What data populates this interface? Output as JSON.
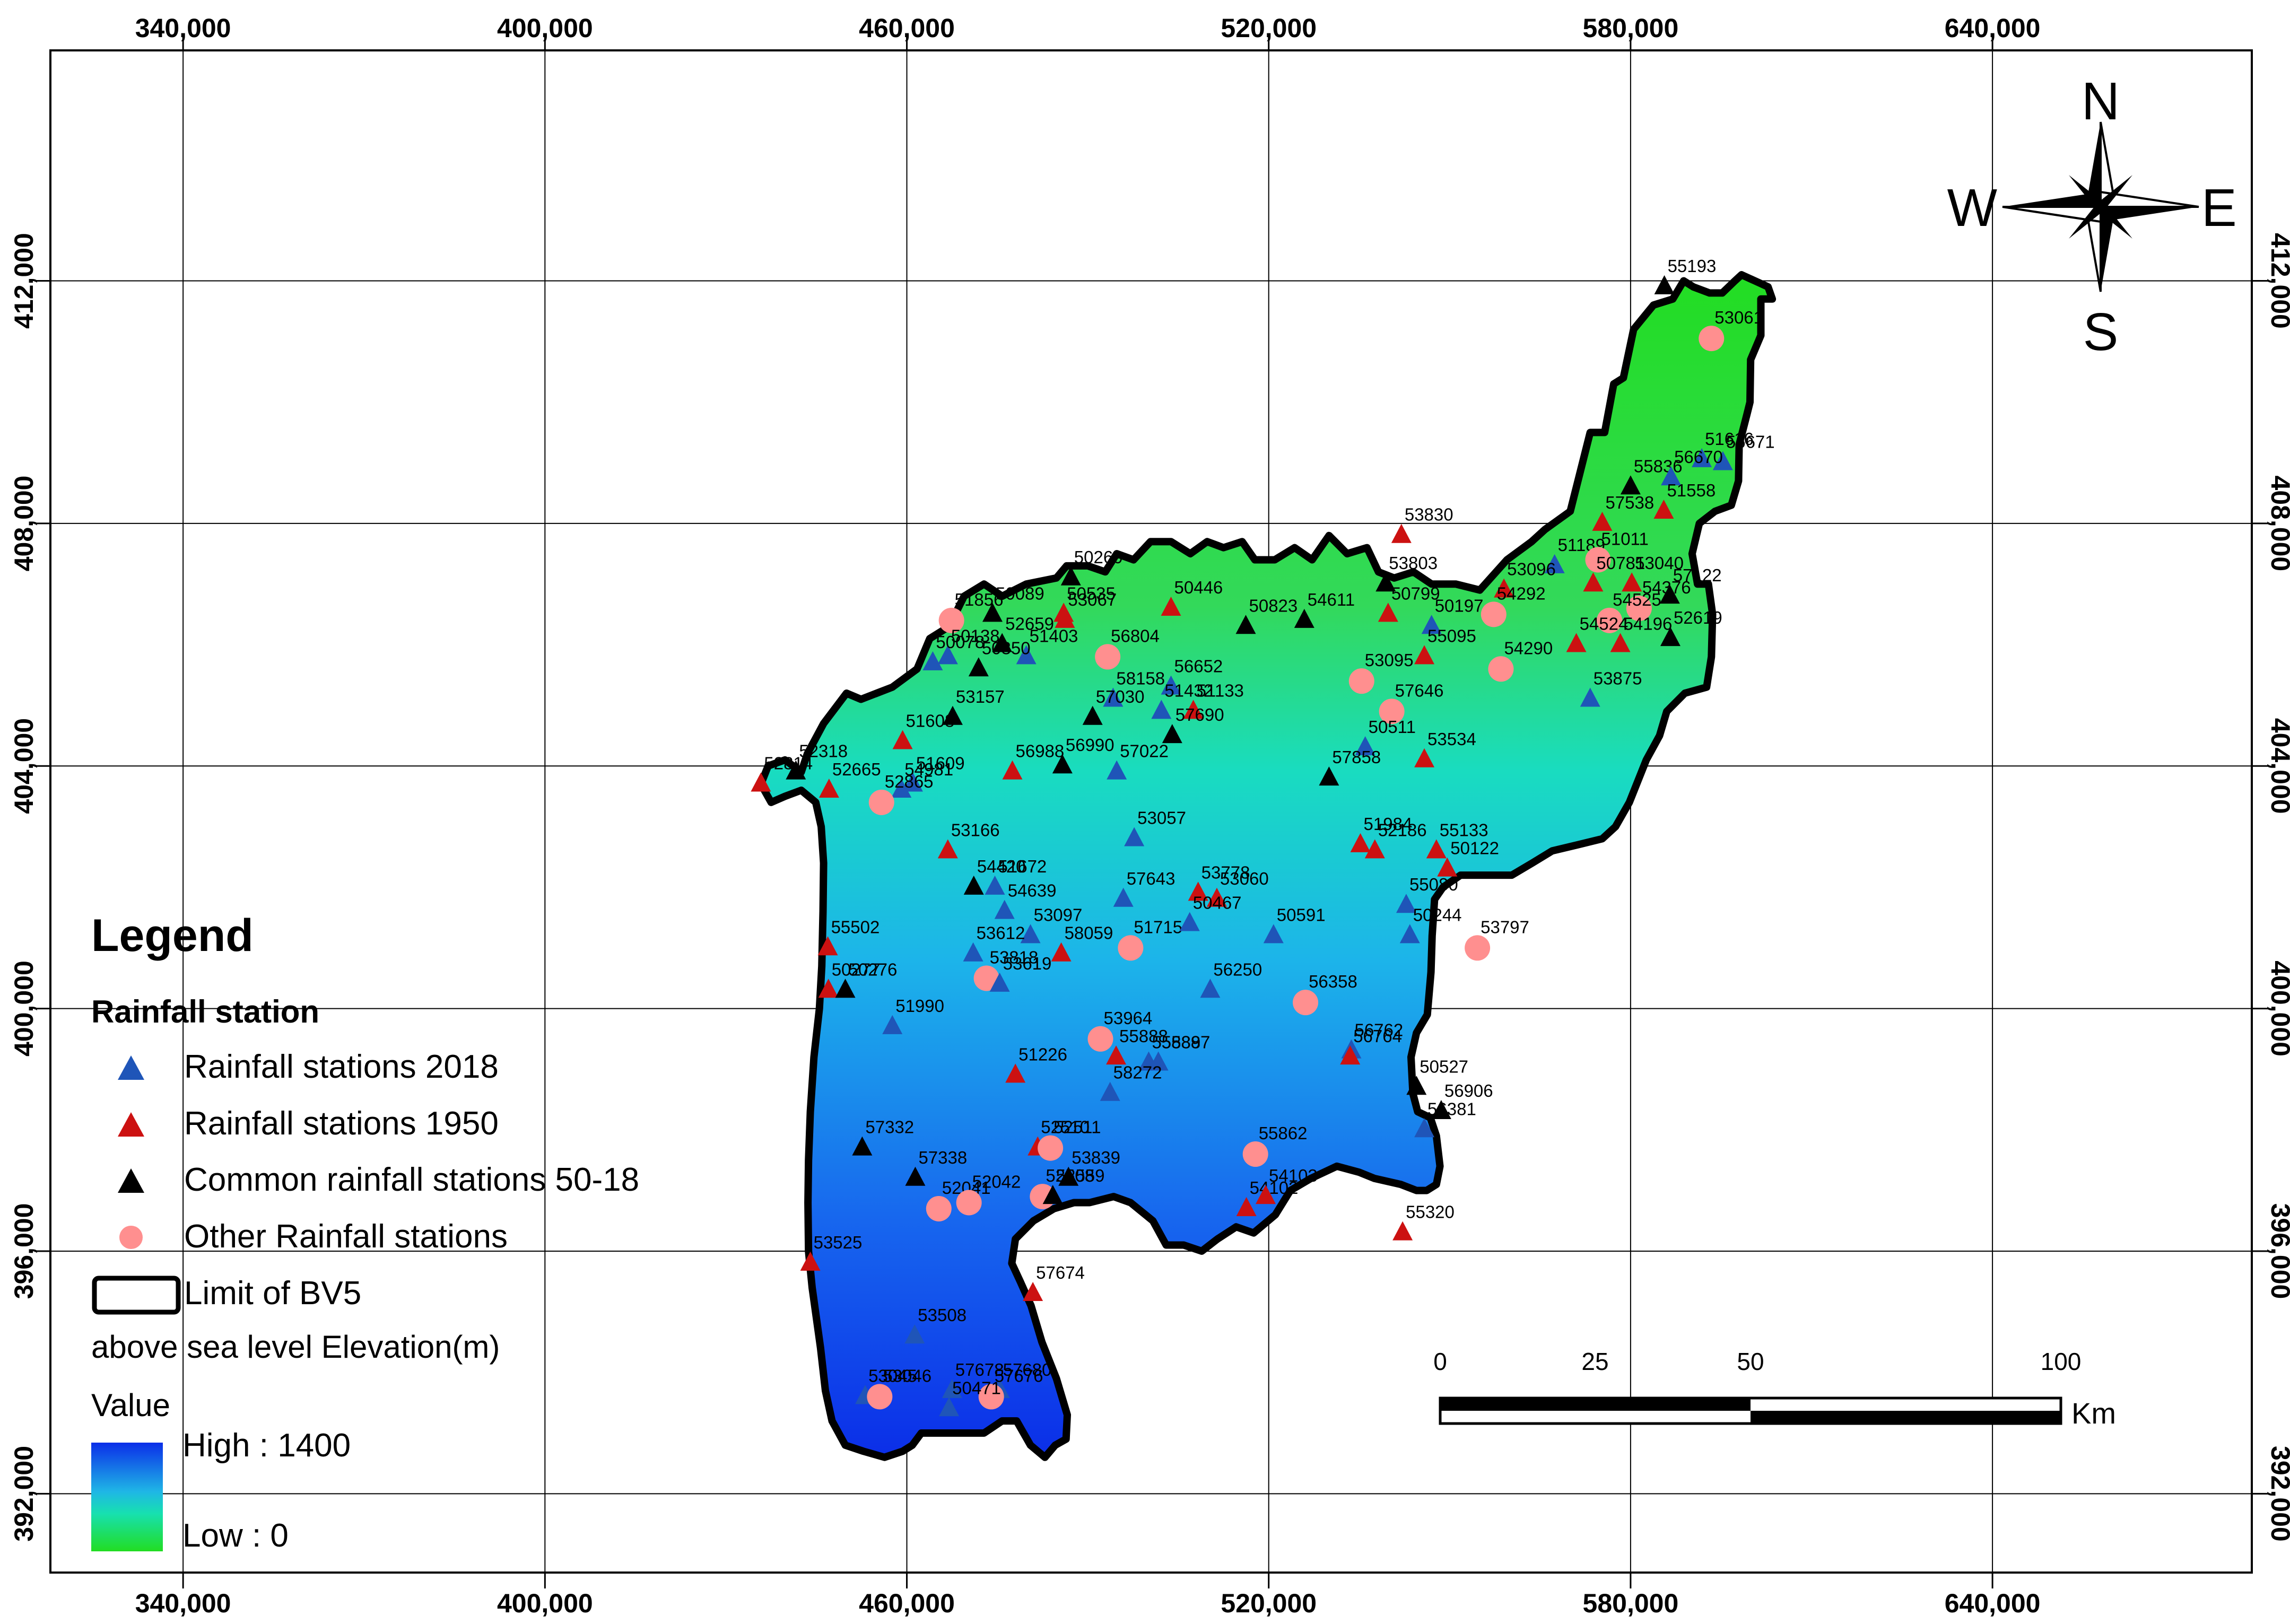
{
  "map": {
    "x_axis_ticks": [
      "340,000",
      "400,000",
      "460,000",
      "520,000",
      "580,000",
      "640,000"
    ],
    "y_axis_ticks": [
      "412,000",
      "408,000",
      "404,000",
      "400,000",
      "396,000",
      "392,000"
    ],
    "x_range": [
      318000,
      683000
    ],
    "y_range": [
      390700,
      415800
    ],
    "compass": {
      "n": "N",
      "s": "S",
      "e": "E",
      "w": "W"
    },
    "colors": {
      "rain_2018": "#1f55b8",
      "rain_1950": "#cc1111",
      "common": "#000000",
      "other": "#ff8f8f",
      "elev_high": "#0b2ee8",
      "elev_low": "#22dd22"
    },
    "stations": [
      {
        "id": "55193",
        "x": 585600,
        "y": 411900,
        "t": "common"
      },
      {
        "id": "53061",
        "x": 593400,
        "y": 411050,
        "t": "other"
      },
      {
        "id": "51616",
        "x": 591800,
        "y": 409050,
        "t": "rain_2018"
      },
      {
        "id": "56671",
        "x": 595300,
        "y": 409000,
        "t": "rain_2018"
      },
      {
        "id": "55836",
        "x": 580000,
        "y": 408600,
        "t": "common"
      },
      {
        "id": "56670",
        "x": 586700,
        "y": 408750,
        "t": "rain_2018"
      },
      {
        "id": "51558",
        "x": 585500,
        "y": 408200,
        "t": "rain_1950"
      },
      {
        "id": "57538",
        "x": 575300,
        "y": 408000,
        "t": "rain_1950"
      },
      {
        "id": "53830",
        "x": 542000,
        "y": 407800,
        "t": "rain_1950"
      },
      {
        "id": "51189",
        "x": 567400,
        "y": 407300,
        "t": "rain_2018"
      },
      {
        "id": "51011",
        "x": 574600,
        "y": 407400,
        "t": "other"
      },
      {
        "id": "53803",
        "x": 539400,
        "y": 407000,
        "t": "common"
      },
      {
        "id": "50781",
        "x": 573800,
        "y": 407000,
        "t": "rain_1950"
      },
      {
        "id": "53040",
        "x": 580200,
        "y": 407000,
        "t": "rain_1950"
      },
      {
        "id": "57122",
        "x": 586500,
        "y": 406800,
        "t": "common"
      },
      {
        "id": "53096",
        "x": 559000,
        "y": 406900,
        "t": "rain_1950"
      },
      {
        "id": "50799",
        "x": 539800,
        "y": 406500,
        "t": "rain_1950"
      },
      {
        "id": "54376",
        "x": 581400,
        "y": 406600,
        "t": "other"
      },
      {
        "id": "54525",
        "x": 576500,
        "y": 406400,
        "t": "other"
      },
      {
        "id": "50197",
        "x": 547000,
        "y": 406300,
        "t": "rain_2018"
      },
      {
        "id": "54292",
        "x": 557300,
        "y": 406500,
        "t": "other"
      },
      {
        "id": "54524",
        "x": 571000,
        "y": 406000,
        "t": "rain_1950"
      },
      {
        "id": "54196",
        "x": 578300,
        "y": 406000,
        "t": "rain_1950"
      },
      {
        "id": "52619",
        "x": 586600,
        "y": 406100,
        "t": "common"
      },
      {
        "id": "55095",
        "x": 545800,
        "y": 405800,
        "t": "rain_1950"
      },
      {
        "id": "54290",
        "x": 558500,
        "y": 405600,
        "t": "other"
      },
      {
        "id": "53875",
        "x": 573300,
        "y": 405100,
        "t": "rain_2018"
      },
      {
        "id": "56652",
        "x": 503800,
        "y": 405300,
        "t": "rain_2018"
      },
      {
        "id": "53095",
        "x": 535400,
        "y": 405400,
        "t": "other"
      },
      {
        "id": "50260",
        "x": 487200,
        "y": 407100,
        "t": "common"
      },
      {
        "id": "50446",
        "x": 503800,
        "y": 406600,
        "t": "rain_1950"
      },
      {
        "id": "50823",
        "x": 516200,
        "y": 406300,
        "t": "common"
      },
      {
        "id": "54611",
        "x": 525900,
        "y": 406400,
        "t": "common"
      },
      {
        "id": "50535",
        "x": 486000,
        "y": 406500,
        "t": "rain_1950"
      },
      {
        "id": "50089",
        "x": 474200,
        "y": 406500,
        "t": "common"
      },
      {
        "id": "51856",
        "x": 467400,
        "y": 406400,
        "t": "other"
      },
      {
        "id": "53067",
        "x": 486200,
        "y": 406400,
        "t": "rain_1950"
      },
      {
        "id": "56804",
        "x": 493300,
        "y": 405800,
        "t": "other"
      },
      {
        "id": "52659",
        "x": 475800,
        "y": 406000,
        "t": "common"
      },
      {
        "id": "50138",
        "x": 466800,
        "y": 405800,
        "t": "rain_2018"
      },
      {
        "id": "51403",
        "x": 479800,
        "y": 405800,
        "t": "rain_2018"
      },
      {
        "id": "50078",
        "x": 464300,
        "y": 405700,
        "t": "rain_2018"
      },
      {
        "id": "50350",
        "x": 471900,
        "y": 405600,
        "t": "common"
      },
      {
        "id": "58158",
        "x": 494200,
        "y": 405100,
        "t": "rain_2018"
      },
      {
        "id": "51432",
        "x": 502200,
        "y": 404900,
        "t": "rain_2018"
      },
      {
        "id": "51133",
        "x": 507500,
        "y": 404900,
        "t": "rain_1950"
      },
      {
        "id": "53157",
        "x": 467600,
        "y": 404800,
        "t": "common"
      },
      {
        "id": "57690",
        "x": 504000,
        "y": 404500,
        "t": "common"
      },
      {
        "id": "57646",
        "x": 540400,
        "y": 404900,
        "t": "other"
      },
      {
        "id": "50511",
        "x": 536000,
        "y": 404300,
        "t": "rain_2018"
      },
      {
        "id": "53534",
        "x": 545800,
        "y": 404100,
        "t": "rain_1950"
      },
      {
        "id": "57030",
        "x": 490800,
        "y": 404800,
        "t": "common"
      },
      {
        "id": "51608",
        "x": 459300,
        "y": 404400,
        "t": "rain_1950"
      },
      {
        "id": "51609",
        "x": 461000,
        "y": 403700,
        "t": "rain_2018"
      },
      {
        "id": "56988",
        "x": 477500,
        "y": 403900,
        "t": "rain_1950"
      },
      {
        "id": "56990",
        "x": 485800,
        "y": 404000,
        "t": "common"
      },
      {
        "id": "57022",
        "x": 494800,
        "y": 403900,
        "t": "rain_2018"
      },
      {
        "id": "57858",
        "x": 530000,
        "y": 403800,
        "t": "common"
      },
      {
        "id": "52318",
        "x": 441600,
        "y": 403900,
        "t": "common"
      },
      {
        "id": "52665",
        "x": 447100,
        "y": 403600,
        "t": "rain_1950"
      },
      {
        "id": "54981",
        "x": 459100,
        "y": 403600,
        "t": "rain_2018"
      },
      {
        "id": "52865",
        "x": 455800,
        "y": 403400,
        "t": "other"
      },
      {
        "id": "52814",
        "x": 435800,
        "y": 403700,
        "t": "rain_1950"
      },
      {
        "id": "53166",
        "x": 466800,
        "y": 402600,
        "t": "rain_1950"
      },
      {
        "id": "53057",
        "x": 497700,
        "y": 402800,
        "t": "rain_2018"
      },
      {
        "id": "51984",
        "x": 535200,
        "y": 402700,
        "t": "rain_1950"
      },
      {
        "id": "55133",
        "x": 547800,
        "y": 402600,
        "t": "rain_1950"
      },
      {
        "id": "52186",
        "x": 537600,
        "y": 402600,
        "t": "rain_1950"
      },
      {
        "id": "50122",
        "x": 549600,
        "y": 402300,
        "t": "rain_1950"
      },
      {
        "id": "51672",
        "x": 474600,
        "y": 402000,
        "t": "rain_2018"
      },
      {
        "id": "53778",
        "x": 508300,
        "y": 401900,
        "t": "rain_1950"
      },
      {
        "id": "54420",
        "x": 471100,
        "y": 402000,
        "t": "common"
      },
      {
        "id": "57643",
        "x": 495900,
        "y": 401800,
        "t": "rain_2018"
      },
      {
        "id": "54639",
        "x": 476200,
        "y": 401600,
        "t": "rain_2018"
      },
      {
        "id": "53060",
        "x": 511400,
        "y": 401800,
        "t": "rain_1950"
      },
      {
        "id": "55080",
        "x": 542800,
        "y": 401700,
        "t": "rain_2018"
      },
      {
        "id": "53097",
        "x": 480500,
        "y": 401200,
        "t": "rain_2018"
      },
      {
        "id": "51715",
        "x": 497100,
        "y": 401000,
        "t": "other"
      },
      {
        "id": "50467",
        "x": 506900,
        "y": 401400,
        "t": "rain_2018"
      },
      {
        "id": "50591",
        "x": 520800,
        "y": 401200,
        "t": "rain_2018"
      },
      {
        "id": "50244",
        "x": 543400,
        "y": 401200,
        "t": "rain_2018"
      },
      {
        "id": "53797",
        "x": 554600,
        "y": 401000,
        "t": "other"
      },
      {
        "id": "53612",
        "x": 471000,
        "y": 400900,
        "t": "rain_2018"
      },
      {
        "id": "53818",
        "x": 473200,
        "y": 400500,
        "t": "other"
      },
      {
        "id": "58059",
        "x": 485600,
        "y": 400900,
        "t": "rain_1950"
      },
      {
        "id": "55502",
        "x": 446900,
        "y": 401000,
        "t": "rain_1950"
      },
      {
        "id": "50277",
        "x": 447000,
        "y": 400300,
        "t": "rain_1950"
      },
      {
        "id": "50276",
        "x": 449800,
        "y": 400300,
        "t": "common"
      },
      {
        "id": "51990",
        "x": 457600,
        "y": 399700,
        "t": "rain_2018"
      },
      {
        "id": "53619",
        "x": 475400,
        "y": 400400,
        "t": "rain_2018"
      },
      {
        "id": "56250",
        "x": 510300,
        "y": 400300,
        "t": "rain_2018"
      },
      {
        "id": "56358",
        "x": 526100,
        "y": 400100,
        "t": "other"
      },
      {
        "id": "53964",
        "x": 492100,
        "y": 399500,
        "t": "other"
      },
      {
        "id": "55888",
        "x": 494700,
        "y": 399200,
        "t": "rain_1950"
      },
      {
        "id": "55889",
        "x": 500100,
        "y": 399100,
        "t": "rain_2018"
      },
      {
        "id": "56762",
        "x": 533700,
        "y": 399300,
        "t": "rain_2018"
      },
      {
        "id": "56764",
        "x": 533500,
        "y": 399200,
        "t": "rain_1950"
      },
      {
        "id": "51226",
        "x": 478000,
        "y": 398900,
        "t": "rain_1950"
      },
      {
        "id": "55887",
        "x": 501700,
        "y": 399100,
        "t": "rain_2018"
      },
      {
        "id": "58272",
        "x": 493700,
        "y": 398600,
        "t": "rain_2018"
      },
      {
        "id": "50527",
        "x": 544500,
        "y": 398700,
        "t": "common"
      },
      {
        "id": "56906",
        "x": 548600,
        "y": 398300,
        "t": "common"
      },
      {
        "id": "56381",
        "x": 545800,
        "y": 398000,
        "t": "rain_2018"
      },
      {
        "id": "57332",
        "x": 452600,
        "y": 397700,
        "t": "common"
      },
      {
        "id": "52510",
        "x": 481700,
        "y": 397700,
        "t": "rain_1950"
      },
      {
        "id": "52511",
        "x": 483800,
        "y": 397700,
        "t": "other"
      },
      {
        "id": "55862",
        "x": 517800,
        "y": 397600,
        "t": "other"
      },
      {
        "id": "57338",
        "x": 461400,
        "y": 397200,
        "t": "common"
      },
      {
        "id": "53839",
        "x": 486800,
        "y": 397200,
        "t": "common"
      },
      {
        "id": "52508",
        "x": 482500,
        "y": 396900,
        "t": "other"
      },
      {
        "id": "52041",
        "x": 465300,
        "y": 396700,
        "t": "other"
      },
      {
        "id": "52042",
        "x": 470300,
        "y": 396800,
        "t": "other"
      },
      {
        "id": "52559",
        "x": 484200,
        "y": 396900,
        "t": "common"
      },
      {
        "id": "54102",
        "x": 516300,
        "y": 396700,
        "t": "rain_1950"
      },
      {
        "id": "54103",
        "x": 519500,
        "y": 396900,
        "t": "rain_1950"
      },
      {
        "id": "55320",
        "x": 542200,
        "y": 396300,
        "t": "rain_1950"
      },
      {
        "id": "53525",
        "x": 444000,
        "y": 395800,
        "t": "rain_1950"
      },
      {
        "id": "57674",
        "x": 480900,
        "y": 395300,
        "t": "rain_1950"
      },
      {
        "id": "53508",
        "x": 461300,
        "y": 394600,
        "t": "rain_2018"
      },
      {
        "id": "53045",
        "x": 453100,
        "y": 393600,
        "t": "rain_2018"
      },
      {
        "id": "53046",
        "x": 455500,
        "y": 393600,
        "t": "other"
      },
      {
        "id": "57678",
        "x": 467500,
        "y": 393700,
        "t": "rain_2018"
      },
      {
        "id": "57680",
        "x": 475400,
        "y": 393700,
        "t": "rain_2018"
      },
      {
        "id": "57676",
        "x": 474000,
        "y": 393600,
        "t": "other"
      },
      {
        "id": "50471",
        "x": 467000,
        "y": 393400,
        "t": "rain_2018"
      }
    ]
  },
  "legend": {
    "title": "Legend",
    "section": "Rainfall station",
    "items": [
      {
        "key": "rain_2018",
        "label": "Rainfall stations 2018",
        "shape": "triangle"
      },
      {
        "key": "rain_1950",
        "label": "Rainfall stations 1950",
        "shape": "triangle"
      },
      {
        "key": "common",
        "label": "Common rainfall stations 50-18",
        "shape": "triangle"
      },
      {
        "key": "other",
        "label": "Other Rainfall stations",
        "shape": "circle"
      },
      {
        "key": "boundary",
        "label": "Limit of BV5",
        "shape": "rect"
      }
    ],
    "elevation_label": "above sea level  Elevation(m)",
    "value_label": "Value",
    "high_label": "High : 1400",
    "low_label": "Low : 0"
  },
  "scalebar": {
    "ticks": [
      "0",
      "25",
      "50",
      "100"
    ],
    "tick_km": [
      0,
      25,
      50,
      100
    ],
    "unit": "Km"
  }
}
